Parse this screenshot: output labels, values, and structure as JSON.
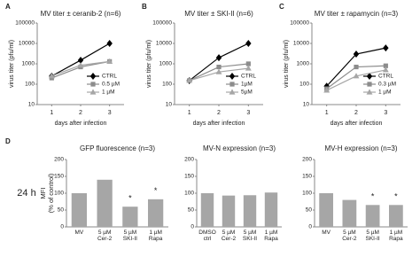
{
  "panels": [
    "A",
    "B",
    "C",
    "D"
  ],
  "row_label": "24 h",
  "chart_data": [
    {
      "type": "line",
      "title": "MV titer ± ceranib-2 (n=6)",
      "x_label": "days after infection",
      "y_label": "virus titer (pfu/ml)",
      "x": [
        1,
        2,
        3
      ],
      "xlim": [
        0.5,
        3.5
      ],
      "xticks": [
        1,
        2,
        3
      ],
      "ylim": [
        10,
        100000
      ],
      "yticks": [
        10,
        100,
        1000,
        10000,
        100000
      ],
      "log_y": true,
      "legend": "lower right",
      "series": [
        {
          "name": "CTRL",
          "color": "#000000",
          "marker": "diamond",
          "values": [
            250,
            1500,
            10000
          ]
        },
        {
          "name": "0.5 µM",
          "color": "#8c8c8c",
          "marker": "square",
          "values": [
            200,
            700,
            1300
          ]
        },
        {
          "name": "1 µM",
          "color": "#a6a6a6",
          "marker": "triangle",
          "values": [
            250,
            850,
            1300
          ]
        }
      ]
    },
    {
      "type": "line",
      "title": "MV titer ± SKI-II (n=6)",
      "x_label": "days after infection",
      "y_label": "virus titer (pfu/ml)",
      "x": [
        1,
        2,
        3
      ],
      "xlim": [
        0.5,
        3.5
      ],
      "xticks": [
        1,
        2,
        3
      ],
      "ylim": [
        10,
        100000
      ],
      "yticks": [
        10,
        100,
        1000,
        10000,
        100000
      ],
      "log_y": true,
      "legend": "lower right",
      "series": [
        {
          "name": "CTRL",
          "color": "#000000",
          "marker": "diamond",
          "values": [
            150,
            2000,
            10000
          ]
        },
        {
          "name": "1µM",
          "color": "#8c8c8c",
          "marker": "square",
          "values": [
            150,
            700,
            1000
          ]
        },
        {
          "name": "5µM",
          "color": "#a6a6a6",
          "marker": "triangle",
          "values": [
            150,
            400,
            600
          ]
        }
      ]
    },
    {
      "type": "line",
      "title": "MV titer ± rapamycin (n=3)",
      "x_label": "days after infection",
      "y_label": "virus titer (pfu/ml)",
      "x": [
        1,
        2,
        3
      ],
      "xlim": [
        0.5,
        3.5
      ],
      "xticks": [
        1,
        2,
        3
      ],
      "ylim": [
        10,
        100000
      ],
      "yticks": [
        10,
        100,
        1000,
        10000,
        100000
      ],
      "log_y": true,
      "legend": "lower right",
      "series": [
        {
          "name": "CTRL",
          "color": "#000000",
          "marker": "diamond",
          "values": [
            80,
            3000,
            6000
          ]
        },
        {
          "name": "0.3 µM",
          "color": "#8c8c8c",
          "marker": "square",
          "values": [
            60,
            700,
            800
          ]
        },
        {
          "name": "1 µM",
          "color": "#a6a6a6",
          "marker": "triangle",
          "values": [
            50,
            250,
            500
          ]
        }
      ]
    },
    {
      "type": "bar",
      "title": "GFP fluorescence  (n=3)",
      "y_label": [
        "MFI",
        "(% of control)"
      ],
      "categories": [
        "MV",
        "5 µM Cer-2",
        "5 µM SKI-II",
        "1 µM Rapa"
      ],
      "values": [
        100,
        140,
        60,
        82
      ],
      "color": "#a6a6a6",
      "significance": [
        null,
        null,
        "*",
        "*"
      ],
      "ylim": [
        0,
        200
      ],
      "yticks": [
        0,
        50,
        100,
        150,
        200
      ]
    },
    {
      "type": "bar",
      "title": "MV-N expression  (n=3)",
      "categories": [
        "DMSO ctrl",
        "5 µM Cer-2",
        "5 µM SKI-II",
        "1 µM Rapa"
      ],
      "values": [
        100,
        93,
        94,
        102
      ],
      "color": "#a6a6a6",
      "significance": [
        null,
        null,
        null,
        null
      ],
      "ylim": [
        0,
        200
      ],
      "yticks": [
        0,
        50,
        100,
        150,
        200
      ]
    },
    {
      "type": "bar",
      "title": "MV-H expression  (n=3)",
      "categories": [
        "MV",
        "5 µM Cer-2",
        "5 µM SKI-II",
        "1 µM Rapa"
      ],
      "values": [
        100,
        80,
        65,
        65
      ],
      "color": "#a6a6a6",
      "significance": [
        null,
        null,
        "*",
        "*"
      ],
      "ylim": [
        0,
        200
      ],
      "yticks": [
        0,
        50,
        100,
        150,
        200
      ]
    }
  ]
}
